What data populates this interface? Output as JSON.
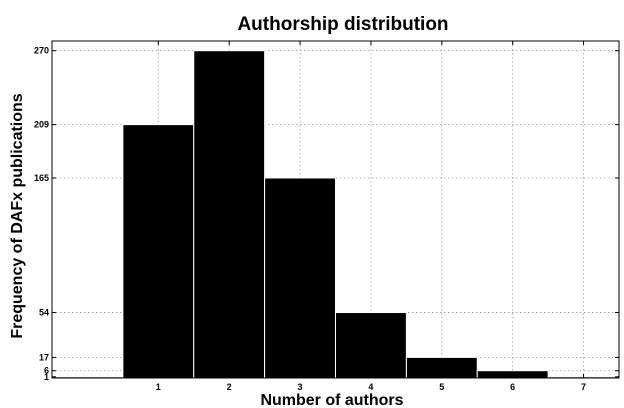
{
  "chart_data": {
    "type": "bar",
    "title": "Authorship distribution",
    "xlabel": "Number of authors",
    "ylabel": "Frequency of DAFx publications",
    "bins": [
      0,
      1,
      2,
      3,
      4,
      5,
      6,
      7
    ],
    "x_ticks": [
      1,
      2,
      3,
      4,
      5,
      6,
      7
    ],
    "y_ticks": [
      1,
      6,
      17,
      54,
      165,
      209,
      270
    ],
    "values": [
      1,
      209,
      270,
      165,
      54,
      17,
      6,
      1
    ],
    "xlim": [
      -0.5,
      7.5
    ],
    "ylim": [
      0,
      278
    ],
    "grid": true,
    "colors": {
      "bar": "#000000",
      "bar_edge": "#ffffff"
    }
  }
}
